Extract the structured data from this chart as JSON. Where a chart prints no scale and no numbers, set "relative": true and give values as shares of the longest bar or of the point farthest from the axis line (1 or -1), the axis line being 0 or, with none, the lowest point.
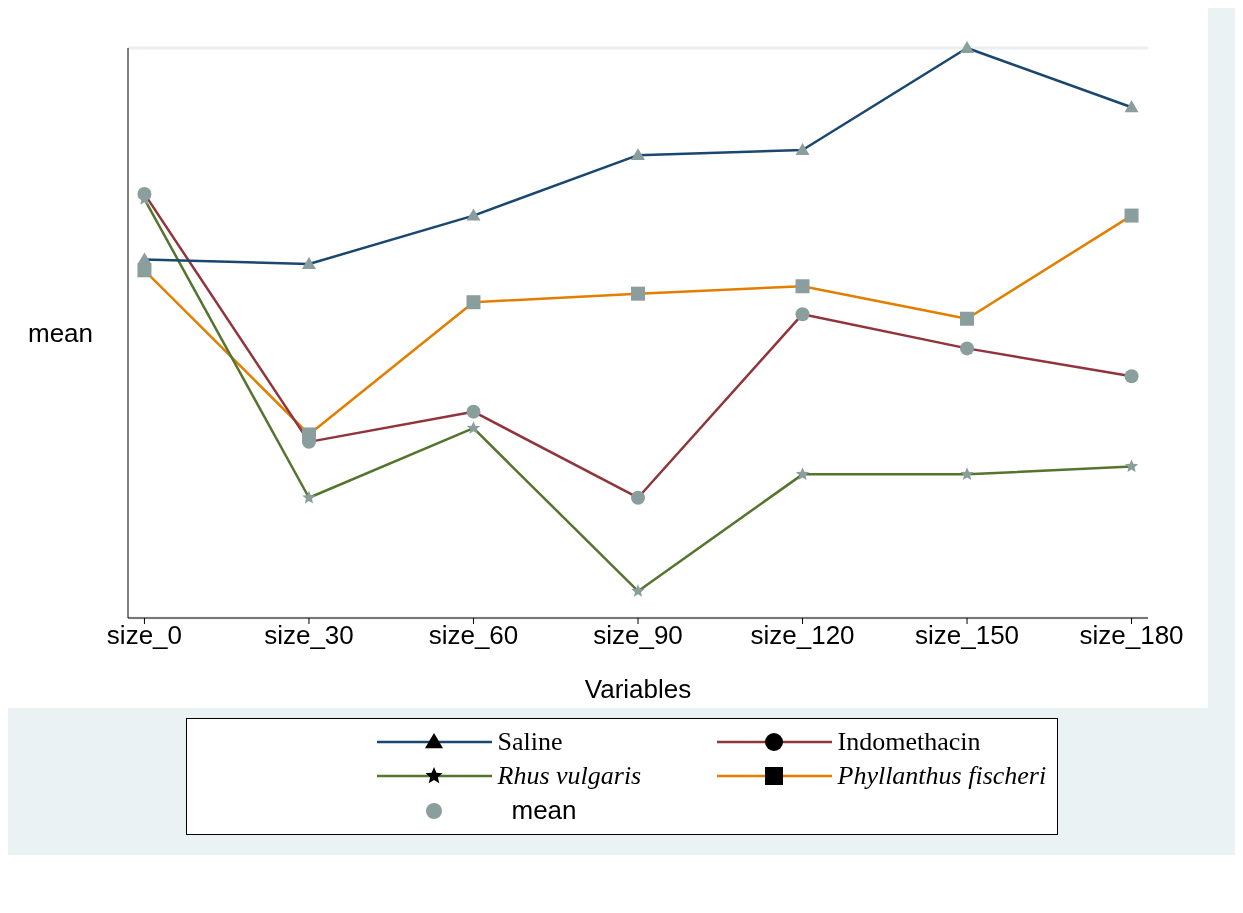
{
  "chart_data": {
    "type": "line",
    "relative": true,
    "xlabel": "Variables",
    "ylabel": "mean",
    "categories": [
      "size_0",
      "size_30",
      "size_60",
      "size_90",
      "size_120",
      "size_150",
      "size_180"
    ],
    "series": [
      {
        "name": "Saline",
        "color": "#1a476f",
        "marker": "triangle",
        "values": [
          0.629,
          0.621,
          0.706,
          0.812,
          0.821,
          1,
          0.896
        ]
      },
      {
        "name": "Indomethacin",
        "color": "#90353b",
        "marker": "circle",
        "values": [
          0.744,
          0.309,
          0.362,
          0.211,
          0.533,
          0.473,
          0.424
        ]
      },
      {
        "name": "Rhus vulgaris",
        "color": "#55752f",
        "marker": "star",
        "values": [
          0.735,
          0.211,
          0.333,
          0.047,
          0.252,
          0.252,
          0.266
        ]
      },
      {
        "name": "Phyllanthus fischeri",
        "color": "#e37e00",
        "marker": "square",
        "values": [
          0.61,
          0.322,
          0.554,
          0.569,
          0.582,
          0.525,
          0.706
        ]
      }
    ],
    "annotations": [
      "mean"
    ],
    "grid": "y",
    "legend": "bottom"
  }
}
